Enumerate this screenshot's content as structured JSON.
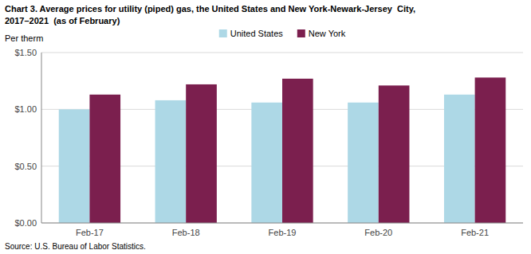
{
  "chart_data": {
    "type": "bar",
    "title": "Chart 3. Average prices for utility (piped) gas, the United States and New York-Newark-Jersey  City,",
    "subtitle": "2017–2021  (as of February)",
    "ylabel": "Per therm",
    "source": "Source: U.S. Bureau of Labor Statistics.",
    "categories": [
      "Feb-17",
      "Feb-18",
      "Feb-19",
      "Feb-20",
      "Feb-21"
    ],
    "series": [
      {
        "name": "United States",
        "color": "#add8e6",
        "values": [
          1.0,
          1.08,
          1.06,
          1.06,
          1.13
        ]
      },
      {
        "name": "New York",
        "color": "#7b1f4e",
        "values": [
          1.13,
          1.22,
          1.27,
          1.21,
          1.28
        ]
      }
    ],
    "ylim": [
      0.0,
      1.5
    ],
    "yticks": [
      {
        "value": 0.0,
        "label": "$0.00"
      },
      {
        "value": 0.5,
        "label": "$0.50"
      },
      {
        "value": 1.0,
        "label": "$1.00"
      },
      {
        "value": 1.5,
        "label": "$1.50"
      }
    ],
    "grid": true,
    "legend": "top"
  }
}
